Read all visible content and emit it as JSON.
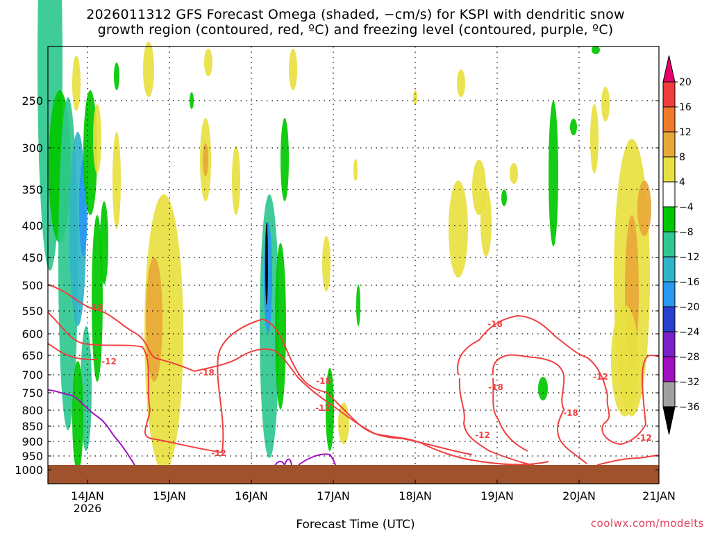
{
  "chart_data": {
    "type": "heatmap",
    "title": "2026011312 GFS Forecast Omega (shaded, −cm/s) for KSPI with dendritic snow",
    "subtitle": "growth region (contoured, red, ºC) and freezing level (contoured, purple, ºC)",
    "xlabel": "Forecast Time (UTC)",
    "ylabel": "",
    "x_ticks": [
      "14JAN",
      "15JAN",
      "16JAN",
      "17JAN",
      "18JAN",
      "19JAN",
      "20JAN",
      "21JAN"
    ],
    "x_year_label": "2026",
    "y_ticks": [
      250,
      300,
      350,
      400,
      450,
      500,
      550,
      600,
      650,
      700,
      750,
      800,
      850,
      900,
      950,
      1000
    ],
    "y_range_hpa": [
      200,
      1000
    ],
    "x_range_days": [
      "13JAN 12Z",
      "21JAN 00Z"
    ],
    "grid": true,
    "colorbar": {
      "labels": [
        "20",
        "16",
        "12",
        "8",
        "4",
        "−4",
        "−8",
        "−12",
        "−16",
        "−20",
        "−24",
        "−28",
        "−32",
        "−36"
      ],
      "colors": [
        "#e8006a",
        "#f03c3c",
        "#f07a2a",
        "#e8a838",
        "#e8e040",
        "#ffffff",
        "#00c800",
        "#30c890",
        "#30b4c8",
        "#2898f0",
        "#2840d0",
        "#7a20c8",
        "#a010c0",
        "#a0a0a0",
        "#000000"
      ]
    },
    "contour_labels": [
      "-18",
      "-12",
      "-18",
      "-12",
      "-18",
      "-12",
      "-18",
      "-18",
      "-12",
      "-12",
      "-18",
      "-12",
      "-18",
      "-18"
    ],
    "colors": {
      "snow_growth_contour": "#f04040",
      "freezing_level_contour": "#a010c0",
      "ground": "#a0522d",
      "credit": "#e0405a"
    }
  },
  "credit": "coolwx.com/modelts"
}
